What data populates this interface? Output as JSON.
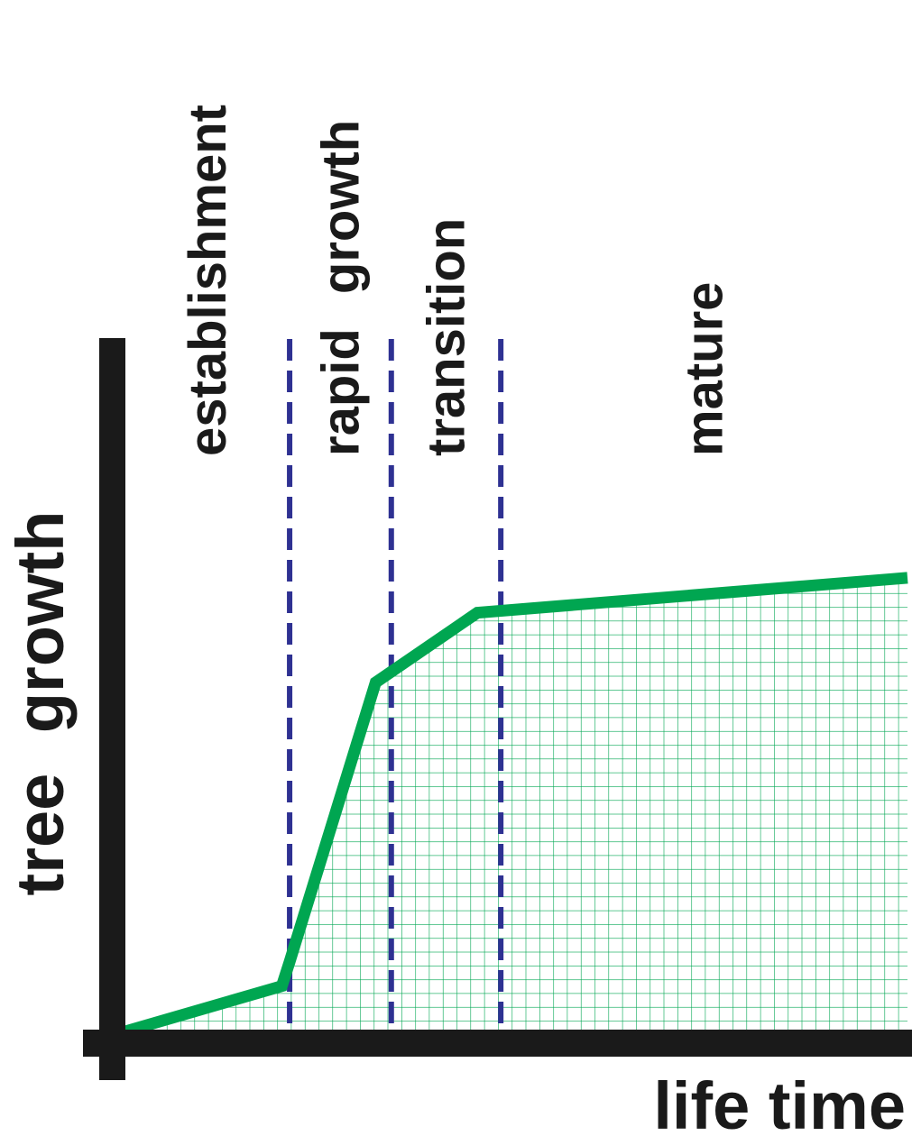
{
  "chart_data": {
    "type": "area",
    "xlabel": "life time",
    "ylabel": "tree growth",
    "x": [
      0,
      20,
      21,
      32,
      45,
      100
    ],
    "values": [
      0,
      6.5,
      10,
      50,
      60,
      65
    ],
    "xlim": [
      0,
      100
    ],
    "ylim": [
      0,
      100
    ],
    "grid": false,
    "fill_pattern": "grid",
    "colors": {
      "line": "#00a651",
      "fill_grid": "#00a651",
      "dividers": "#2e3192",
      "axes": "#1a1a1a"
    },
    "stages": [
      {
        "label": "establishment",
        "end": 21
      },
      {
        "label": "rapid growth",
        "end": 34
      },
      {
        "label": "transition",
        "end": 48
      },
      {
        "label": "mature",
        "end": 100
      }
    ]
  }
}
